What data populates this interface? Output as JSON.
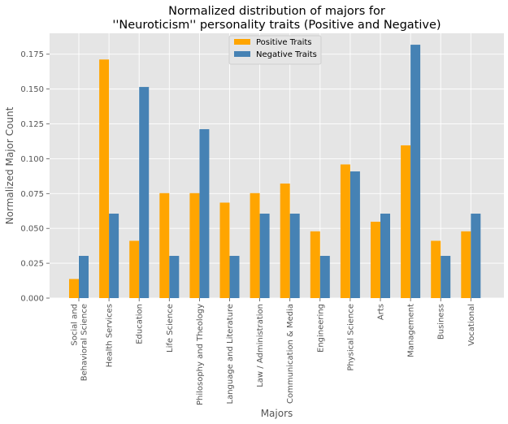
{
  "chart_data": {
    "type": "bar",
    "title_lines": [
      "Normalized distribution of majors for",
      "''Neuroticism'' personality traits (Positive and Negative)"
    ],
    "xlabel": "Majors",
    "ylabel": "Normalized Major Count",
    "categories": [
      [
        "Social and",
        "Behavioral Science"
      ],
      [
        "Health Services"
      ],
      [
        "Education"
      ],
      [
        "Life Science"
      ],
      [
        "Philosophy and Theology"
      ],
      [
        "Language and Literature"
      ],
      [
        "Law / Administration"
      ],
      [
        "Communication & Media"
      ],
      [
        "Engineering"
      ],
      [
        "Physical Science"
      ],
      [
        "Arts"
      ],
      [
        "Management"
      ],
      [
        "Business"
      ],
      [
        "Vocational"
      ]
    ],
    "series": [
      {
        "name": "Positive Traits",
        "color": "#FFA500",
        "values": [
          0.0137,
          0.1712,
          0.0411,
          0.0753,
          0.0753,
          0.0685,
          0.0753,
          0.0822,
          0.0479,
          0.0959,
          0.0548,
          0.1096,
          0.0411,
          0.0479
        ]
      },
      {
        "name": "Negative Traits",
        "color": "#4682B4",
        "values": [
          0.0303,
          0.0606,
          0.1515,
          0.0303,
          0.1212,
          0.0303,
          0.0606,
          0.0606,
          0.0303,
          0.0909,
          0.0606,
          0.1818,
          0.0303,
          0.0606
        ]
      }
    ],
    "yticks": [
      "0.000",
      "0.025",
      "0.050",
      "0.075",
      "0.100",
      "0.125",
      "0.150",
      "0.175"
    ],
    "ylim": [
      0,
      0.19
    ],
    "grid": true,
    "legend_position": "top-center",
    "background_color": "#E5E5E5",
    "grid_color": "#FFFFFF"
  }
}
